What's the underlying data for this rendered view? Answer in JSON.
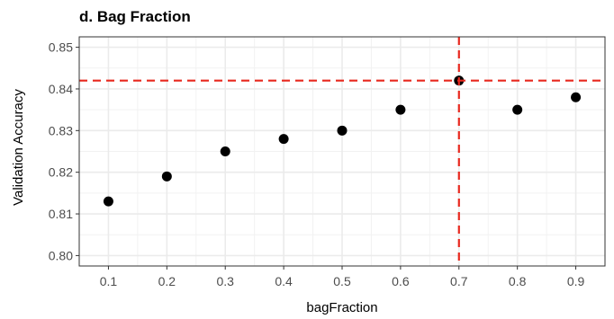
{
  "chart_data": {
    "type": "scatter",
    "title": "d. Bag Fraction",
    "xlabel": "bagFraction",
    "ylabel": "Validation Accuracy",
    "x": [
      0.1,
      0.2,
      0.3,
      0.4,
      0.5,
      0.6,
      0.7,
      0.8,
      0.9
    ],
    "y": [
      0.813,
      0.819,
      0.825,
      0.828,
      0.83,
      0.835,
      0.842,
      0.835,
      0.838
    ],
    "xlim": [
      0.05,
      0.95
    ],
    "ylim": [
      0.7975,
      0.8525
    ],
    "x_ticks": [
      "0.1",
      "0.2",
      "0.3",
      "0.4",
      "0.5",
      "0.6",
      "0.7",
      "0.8",
      "0.9"
    ],
    "y_ticks": [
      "0.80",
      "0.81",
      "0.82",
      "0.83",
      "0.84",
      "0.85"
    ],
    "reference_lines": {
      "vertical_x": 0.7,
      "horizontal_y": 0.842,
      "color": "#e8281e",
      "style": "dashed"
    },
    "grid": true,
    "point_color": "#000000"
  }
}
